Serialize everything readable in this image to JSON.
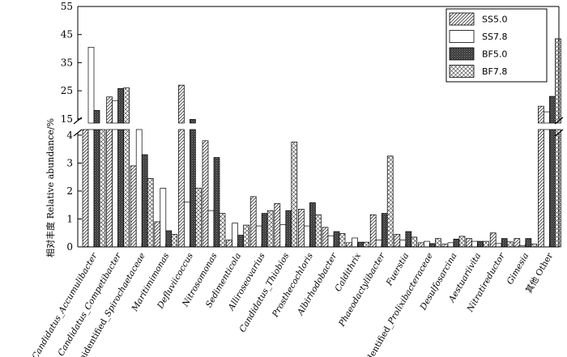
{
  "chart_data": {
    "type": "bar",
    "ylabel": "相对丰度 Relative abundance/%",
    "y_axis_break": {
      "lower_range": [
        0,
        4.2
      ],
      "upper_range": [
        13.5,
        55
      ]
    },
    "lower_ticks": [
      0,
      1,
      2,
      3,
      4
    ],
    "upper_ticks": [
      15,
      25,
      35,
      45,
      55
    ],
    "categories": [
      "Candidatus_Accumulibacter",
      "Candidatus_Competibacter",
      "unidentified_Spirochaetaceae",
      "Maritimimonas",
      "Defluviicoccus",
      "Nitrosomonas",
      "Sedimenticola",
      "Alliroseovarius",
      "Candidatus_Thiobios",
      "Prosthecochloris",
      "Albirhodobacter",
      "Caldithrix",
      "Phaeodactylibacter",
      "Fuerstia",
      "unidentified_Prolixibacteraceae",
      "Desulfosarcina",
      "Aestuariivita",
      "Nitratireductor",
      "Gimesia",
      "其他 Other"
    ],
    "series": [
      {
        "name": "SS5.0",
        "pattern": "diagonal",
        "values": [
          4.3,
          22.8,
          2.9,
          0.9,
          27.0,
          3.8,
          0.25,
          1.8,
          1.55,
          1.35,
          0.7,
          0.15,
          1.15,
          0.45,
          0.15,
          0.1,
          0.3,
          0.5,
          0.3,
          19.5
        ]
      },
      {
        "name": "SS7.8",
        "pattern": "white",
        "values": [
          40.5,
          21.5,
          4.3,
          2.1,
          1.6,
          1.3,
          0.85,
          0.75,
          0.8,
          0.75,
          0.4,
          0.32,
          0.25,
          0.25,
          0.2,
          0.15,
          0.2,
          0.12,
          0.05,
          17.5
        ]
      },
      {
        "name": "BF5.0",
        "pattern": "dark",
        "values": [
          18.0,
          25.8,
          3.3,
          0.58,
          14.8,
          3.2,
          0.42,
          1.2,
          1.3,
          1.58,
          0.55,
          0.17,
          1.2,
          0.55,
          0.12,
          0.28,
          0.2,
          0.3,
          0.3,
          23.0
        ]
      },
      {
        "name": "BF7.8",
        "pattern": "crosshatch",
        "values": [
          4.3,
          26.0,
          2.45,
          0.45,
          2.1,
          1.2,
          0.78,
          1.3,
          3.75,
          1.15,
          0.48,
          0.17,
          3.25,
          0.35,
          0.3,
          0.38,
          0.2,
          0.18,
          0.1,
          43.5
        ]
      }
    ],
    "legend_position": "top-right",
    "grid": false
  }
}
